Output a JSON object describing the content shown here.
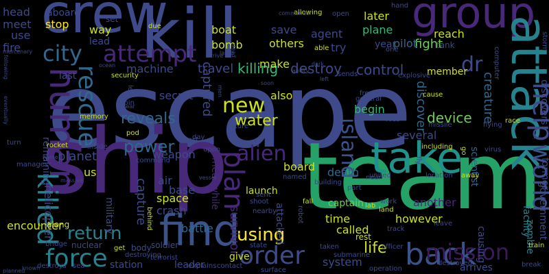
{
  "background": "#000000",
  "palette": {
    "deep_purple": "#3b1a5a",
    "purple": "#482878",
    "indigo": "#3e4a89",
    "blue": "#31688e",
    "teal": "#26828e",
    "green": "#35b779",
    "lime": "#6ece58",
    "yellow": "#cde11d",
    "bright_yellow": "#fde725"
  },
  "words": [
    {
      "text": "escape",
      "color": "#3e4a89"
    },
    {
      "text": "ship",
      "color": "#482878"
    },
    {
      "text": "team",
      "color": "#26a269"
    },
    {
      "text": "kill",
      "color": "#3e4a89"
    },
    {
      "text": "crew",
      "color": "#3e4a89"
    },
    {
      "text": "group",
      "color": "#482878"
    },
    {
      "text": "attack",
      "color": "#26828e"
    },
    {
      "text": "human",
      "color": "#482878"
    },
    {
      "text": "find",
      "color": "#3b528b"
    },
    {
      "text": "take",
      "color": "#21918c"
    },
    {
      "text": "back",
      "color": "#3b528b"
    },
    {
      "text": "rescue",
      "color": "#31688e"
    },
    {
      "text": "killed",
      "color": "#26828e"
    },
    {
      "text": "force",
      "color": "#26828e"
    },
    {
      "text": "mission",
      "color": "#3b1a5a"
    },
    {
      "text": "order",
      "color": "#3e4a89"
    },
    {
      "text": "attempt",
      "color": "#482878"
    },
    {
      "text": "city",
      "color": "#31688e"
    },
    {
      "text": "help",
      "color": "#3e4a89"
    },
    {
      "text": "world",
      "color": "#3b528b"
    },
    {
      "text": "new",
      "color": "#cde11d"
    },
    {
      "text": "plan",
      "color": "#482878"
    },
    {
      "text": "alien",
      "color": "#482878"
    },
    {
      "text": "island",
      "color": "#3b528b"
    },
    {
      "text": "power",
      "color": "#31688e"
    },
    {
      "text": "return",
      "color": "#26828e"
    },
    {
      "text": "using",
      "color": "#fde725"
    },
    {
      "text": "dr",
      "color": "#3e4a89"
    },
    {
      "text": "water",
      "color": "#cde11d"
    },
    {
      "text": "life",
      "color": "#cde11d"
    },
    {
      "text": "reveals",
      "color": "#31688e"
    },
    {
      "text": "killing",
      "color": "#35b779"
    },
    {
      "text": "destroy",
      "color": "#3e4a89"
    },
    {
      "text": "control",
      "color": "#3e4a89"
    },
    {
      "text": "device",
      "color": "#6ece58"
    },
    {
      "text": "creature",
      "color": "#31688e"
    },
    {
      "text": "discover",
      "color": "#31688e"
    },
    {
      "text": "planet",
      "color": "#3e4a89"
    },
    {
      "text": "capture",
      "color": "#3e4a89"
    },
    {
      "text": "captured",
      "color": "#3e4a89"
    },
    {
      "text": "survivor",
      "color": "#482878"
    },
    {
      "text": "travel",
      "color": "#3e4a89"
    },
    {
      "text": "machine",
      "color": "#3e4a89"
    },
    {
      "text": "fight",
      "color": "#6ece58"
    },
    {
      "text": "pilot",
      "color": "#31688e"
    },
    {
      "text": "plane",
      "color": "#35b779"
    },
    {
      "text": "later",
      "color": "#cde11d"
    },
    {
      "text": "agent",
      "color": "#3e4a89"
    },
    {
      "text": "save",
      "color": "#3e4a89"
    },
    {
      "text": "reach",
      "color": "#cde11d"
    },
    {
      "text": "boat",
      "color": "#cde11d"
    },
    {
      "text": "bomb",
      "color": "#cde11d"
    },
    {
      "text": "others",
      "color": "#cde11d"
    },
    {
      "text": "make",
      "color": "#cde11d"
    },
    {
      "text": "try",
      "color": "#3e4a89"
    },
    {
      "text": "stop",
      "color": "#fde725"
    },
    {
      "text": "way",
      "color": "#cde11d"
    },
    {
      "text": "lead",
      "color": "#3e4a89"
    },
    {
      "text": "meet",
      "color": "#3e4a89"
    },
    {
      "text": "use",
      "color": "#3e4a89"
    },
    {
      "text": "head",
      "color": "#3e4a89"
    },
    {
      "text": "fire",
      "color": "#3e4a89"
    },
    {
      "text": "aboard",
      "color": "#3e4a89"
    },
    {
      "text": "also",
      "color": "#cde11d"
    },
    {
      "text": "secret",
      "color": "#3e4a89"
    },
    {
      "text": "begin",
      "color": "#35b779"
    },
    {
      "text": "several",
      "color": "#3e4a89"
    },
    {
      "text": "member",
      "color": "#cde11d"
    },
    {
      "text": "zombie",
      "color": "#26828e"
    },
    {
      "text": "facility",
      "color": "#26828e"
    },
    {
      "text": "discovers",
      "color": "#3e4a89"
    },
    {
      "text": "former",
      "color": "#3e4a89"
    },
    {
      "text": "government",
      "color": "#3e4a89"
    },
    {
      "text": "scientist",
      "color": "#31688e"
    },
    {
      "text": "however",
      "color": "#cde11d"
    },
    {
      "text": "time",
      "color": "#cde11d"
    },
    {
      "text": "called",
      "color": "#cde11d"
    },
    {
      "text": "captain",
      "color": "#6ece58"
    },
    {
      "text": "system",
      "color": "#3e4a89"
    },
    {
      "text": "death",
      "color": "#31688e"
    },
    {
      "text": "board",
      "color": "#cde11d"
    },
    {
      "text": "launch",
      "color": "#cde11d"
    },
    {
      "text": "battle",
      "color": "#31688e"
    },
    {
      "text": "crash",
      "color": "#3e4a89"
    },
    {
      "text": "space",
      "color": "#cde11d"
    },
    {
      "text": "base",
      "color": "#3e4a89"
    },
    {
      "text": "air",
      "color": "#3e4a89"
    },
    {
      "text": "weapon",
      "color": "#3e4a89"
    },
    {
      "text": "encounter",
      "color": "#cde11d"
    },
    {
      "text": "helicopter",
      "color": "#3e4a89"
    },
    {
      "text": "military",
      "color": "#3e4a89"
    },
    {
      "text": "station",
      "color": "#3e4a89"
    },
    {
      "text": "leader",
      "color": "#3e4a89"
    },
    {
      "text": "give",
      "color": "#cde11d"
    },
    {
      "text": "meanwhile",
      "color": "#482878"
    },
    {
      "text": "another",
      "color": "#482878"
    },
    {
      "text": "causing",
      "color": "#3e4a89"
    },
    {
      "text": "arrives",
      "color": "#3e4a89"
    },
    {
      "text": "soldier",
      "color": "#3e4a89"
    },
    {
      "text": "nuclear",
      "color": "#3e4a89"
    },
    {
      "text": "body",
      "color": "#3e4a89"
    },
    {
      "text": "rest",
      "color": "#cde11d"
    },
    {
      "text": "remaining",
      "color": "#3e4a89"
    },
    {
      "text": "along",
      "color": "#cde11d"
    },
    {
      "text": "attacked",
      "color": "#3e4a89"
    },
    {
      "text": "us",
      "color": "#cde11d"
    },
    {
      "text": "last",
      "color": "#3e4a89"
    },
    {
      "text": "set",
      "color": "#3e4a89"
    },
    {
      "text": "due",
      "color": "#cde11d"
    },
    {
      "text": "tank",
      "color": "#3e4a89"
    },
    {
      "text": "year",
      "color": "#3e4a89"
    },
    {
      "text": "open",
      "color": "#3e4a89"
    },
    {
      "text": "hand",
      "color": "#3e4a89"
    },
    {
      "text": "one",
      "color": "#3e4a89"
    },
    {
      "text": "able",
      "color": "#cde11d"
    },
    {
      "text": "allowing",
      "color": "#cde11d"
    },
    {
      "text": "computer",
      "color": "#3e4a89"
    },
    {
      "text": "storm",
      "color": "#3e4a89"
    },
    {
      "text": "explosive",
      "color": "#3e4a89"
    },
    {
      "text": "cause",
      "color": "#cde11d"
    },
    {
      "text": "free",
      "color": "#3e4a89"
    },
    {
      "text": "general",
      "color": "#3e4a89"
    },
    {
      "text": "ross",
      "color": "#3e4a89"
    },
    {
      "text": "race",
      "color": "#cde11d"
    },
    {
      "text": "missile",
      "color": "#3e4a89"
    },
    {
      "text": "flying",
      "color": "#3e4a89"
    },
    {
      "text": "virus",
      "color": "#3e4a89"
    },
    {
      "text": "including",
      "color": "#cde11d"
    },
    {
      "text": "go",
      "color": "#cde11d"
    },
    {
      "text": "location",
      "color": "#3e4a89"
    },
    {
      "text": "away",
      "color": "#cde11d"
    },
    {
      "text": "united",
      "color": "#3e4a89"
    },
    {
      "text": "part",
      "color": "#3e4a89"
    },
    {
      "text": "work",
      "color": "#3e4a89"
    },
    {
      "text": "land",
      "color": "#cde11d"
    },
    {
      "text": "lab",
      "color": "#cde11d"
    },
    {
      "text": "track",
      "color": "#3e4a89"
    },
    {
      "text": "officer",
      "color": "#3e4a89"
    },
    {
      "text": "taken",
      "color": "#3e4a89"
    },
    {
      "text": "submarine",
      "color": "#3e4a89"
    },
    {
      "text": "destroyed",
      "color": "#3e4a89"
    },
    {
      "text": "operation",
      "color": "#3e4a89"
    },
    {
      "text": "break",
      "color": "#3e4a89"
    },
    {
      "text": "leave",
      "color": "#3e4a89"
    },
    {
      "text": "train",
      "color": "#cde11d"
    },
    {
      "text": "state",
      "color": "#3e4a89"
    },
    {
      "text": "contact",
      "color": "#3e4a89"
    },
    {
      "text": "surface",
      "color": "#3e4a89"
    },
    {
      "text": "explains",
      "color": "#3e4a89"
    },
    {
      "text": "terrorist",
      "color": "#3e4a89"
    },
    {
      "text": "behind",
      "color": "#cde11d"
    },
    {
      "text": "command",
      "color": "#3e4a89"
    },
    {
      "text": "test",
      "color": "#3e4a89"
    },
    {
      "text": "upon",
      "color": "#3e4a89"
    },
    {
      "text": "day",
      "color": "#3e4a89"
    },
    {
      "text": "future",
      "color": "#3e4a89"
    },
    {
      "text": "pod",
      "color": "#cde11d"
    },
    {
      "text": "memory",
      "color": "#cde11d"
    },
    {
      "text": "inside",
      "color": "#3e4a89"
    },
    {
      "text": "rocket",
      "color": "#cde11d"
    },
    {
      "text": "turn",
      "color": "#3e4a89"
    },
    {
      "text": "manages",
      "color": "#3e4a89"
    },
    {
      "text": "home",
      "color": "#3e4a89"
    },
    {
      "text": "join",
      "color": "#3e4a89"
    },
    {
      "text": "war",
      "color": "#3e4a89"
    },
    {
      "text": "security",
      "color": "#cde11d"
    },
    {
      "text": "ocean",
      "color": "#3e4a89"
    },
    {
      "text": "learns",
      "color": "#3e4a89"
    },
    {
      "text": "soon",
      "color": "#3e4a89"
    },
    {
      "text": "left",
      "color": "#3e4a89"
    },
    {
      "text": "sends",
      "color": "#3e4a89"
    },
    {
      "text": "ability",
      "color": "#3e4a89"
    },
    {
      "text": "large",
      "color": "#3e4a89"
    },
    {
      "text": "arrive",
      "color": "#3e4a89"
    },
    {
      "text": "commander",
      "color": "#3e4a89"
    },
    {
      "text": "mercenary",
      "color": "#3e4a89"
    },
    {
      "text": "following",
      "color": "#3e4a89"
    },
    {
      "text": "eventually",
      "color": "#3e4a89"
    },
    {
      "text": "dead",
      "color": "#3e4a89"
    },
    {
      "text": "sent",
      "color": "#3e4a89"
    },
    {
      "text": "shoot",
      "color": "#3e4a89"
    },
    {
      "text": "nearby",
      "color": "#3e4a89"
    },
    {
      "text": "robot",
      "color": "#3e4a89"
    },
    {
      "text": "fall",
      "color": "#cde11d"
    },
    {
      "text": "near",
      "color": "#3e4a89"
    },
    {
      "text": "named",
      "color": "#3e4a89"
    },
    {
      "text": "building",
      "color": "#3e4a89"
    },
    {
      "text": "bridge",
      "color": "#3e4a89"
    },
    {
      "text": "destroying",
      "color": "#3e4a89"
    },
    {
      "text": "destroys",
      "color": "#3e4a89"
    },
    {
      "text": "sea",
      "color": "#3e4a89"
    },
    {
      "text": "known",
      "color": "#3e4a89"
    },
    {
      "text": "massive",
      "color": "#3e4a89"
    },
    {
      "text": "get",
      "color": "#cde11d"
    },
    {
      "text": "led",
      "color": "#3e4a89"
    },
    {
      "text": "men",
      "color": "#3e4a89"
    },
    {
      "text": "dark",
      "color": "#3e4a89"
    },
    {
      "text": "vessel",
      "color": "#3e4a89"
    },
    {
      "text": "planned",
      "color": "#3e4a89"
    },
    {
      "text": "fly",
      "color": "#3e4a89"
    }
  ]
}
